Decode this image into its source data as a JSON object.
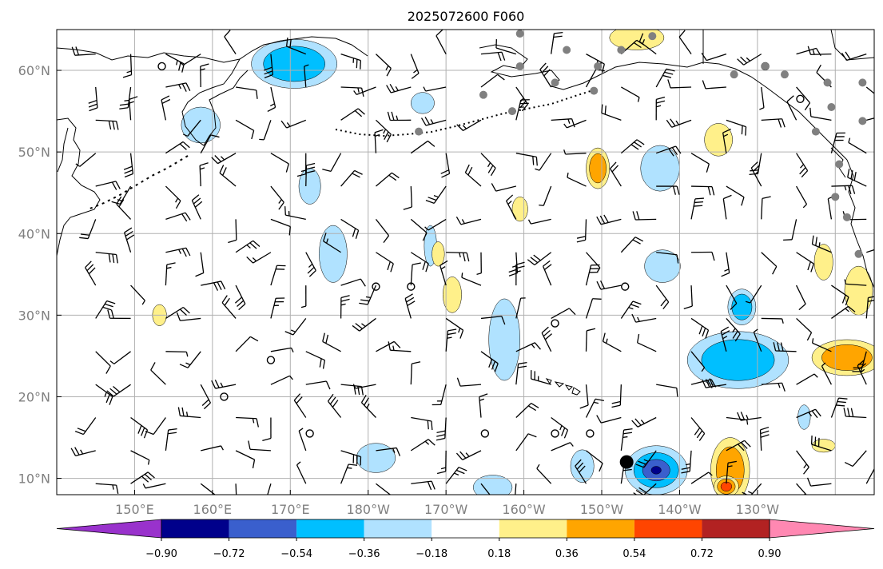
{
  "title": "2025072600 F060",
  "colors": {
    "grid": "#b0b0b0",
    "land_outline": "#000000",
    "barb": "#000000",
    "gray_marker": "#808080",
    "axis_text": "#808080"
  },
  "lat_labels": [
    "60°N",
    "50°N",
    "40°N",
    "30°N",
    "20°N",
    "10°N"
  ],
  "lon_labels": [
    "150°E",
    "160°E",
    "170°E",
    "180°W",
    "170°W",
    "160°W",
    "150°W",
    "140°W",
    "130°W"
  ],
  "colorbar": {
    "colors": [
      "#9932cc",
      "#00008b",
      "#3a5fcd",
      "#00bfff",
      "#b0e2ff",
      "#ffffff",
      "#fff08a",
      "#ffa500",
      "#ff4500",
      "#b22222",
      "#ff88b2"
    ],
    "tick_labels": [
      "−0.90",
      "−0.72",
      "−0.54",
      "−0.36",
      "−0.18",
      "0.18",
      "0.36",
      "0.54",
      "0.72",
      "0.90"
    ]
  },
  "chart_data": {
    "type": "heatmap",
    "title": "2025072600 F060",
    "projection": "Plate Carree (map)",
    "lon_range": [
      140,
      245
    ],
    "lat_range": [
      8,
      65
    ],
    "grid": true,
    "levels": [
      -0.9,
      -0.72,
      -0.54,
      -0.36,
      -0.18,
      0.18,
      0.36,
      0.54,
      0.72,
      0.9
    ],
    "colorbar_extend": "both",
    "negative_features": [
      {
        "lon": 170.5,
        "lat": 60.8,
        "rx": 5.5,
        "ry": 3.0,
        "level": -0.54
      },
      {
        "lon": 158.5,
        "lat": 53.3,
        "rx": 2.5,
        "ry": 2.2,
        "level": -0.36
      },
      {
        "lon": 172.5,
        "lat": 45.8,
        "rx": 1.4,
        "ry": 2.2,
        "level": -0.36
      },
      {
        "lon": 175.5,
        "lat": 37.5,
        "rx": 1.8,
        "ry": 3.5,
        "level": -0.36
      },
      {
        "lon": 188.0,
        "lat": 38.5,
        "rx": 0.8,
        "ry": 2.5,
        "level": -0.36
      },
      {
        "lon": 187.0,
        "lat": 56.0,
        "rx": 1.5,
        "ry": 1.3,
        "level": -0.36
      },
      {
        "lon": 197.5,
        "lat": 27.0,
        "rx": 2.0,
        "ry": 5.0,
        "level": -0.36
      },
      {
        "lon": 217.5,
        "lat": 48.0,
        "rx": 2.5,
        "ry": 2.8,
        "level": -0.36
      },
      {
        "lon": 217.8,
        "lat": 36.0,
        "rx": 2.3,
        "ry": 2.0,
        "level": -0.36
      },
      {
        "lon": 227.5,
        "lat": 24.5,
        "rx": 6.5,
        "ry": 3.5,
        "level": -0.54
      },
      {
        "lon": 228.0,
        "lat": 31.0,
        "rx": 1.8,
        "ry": 2.2,
        "level": -0.54
      },
      {
        "lon": 217.0,
        "lat": 11.0,
        "rx": 4.0,
        "ry": 3.0,
        "level": -0.9
      },
      {
        "lon": 207.5,
        "lat": 11.5,
        "rx": 1.5,
        "ry": 2.0,
        "level": -0.36
      },
      {
        "lon": 196.0,
        "lat": 8.9,
        "rx": 2.5,
        "ry": 1.5,
        "level": -0.36
      },
      {
        "lon": 181.0,
        "lat": 12.5,
        "rx": 2.5,
        "ry": 1.8,
        "level": -0.36
      },
      {
        "lon": 236.0,
        "lat": 17.5,
        "rx": 0.8,
        "ry": 1.5,
        "level": -0.36
      }
    ],
    "positive_features": [
      {
        "lon": 209.5,
        "lat": 48.0,
        "rx": 1.5,
        "ry": 2.5,
        "level": 0.54
      },
      {
        "lon": 199.5,
        "lat": 43.0,
        "rx": 1.0,
        "ry": 1.5,
        "level": 0.36
      },
      {
        "lon": 189.0,
        "lat": 37.5,
        "rx": 0.8,
        "ry": 1.5,
        "level": 0.36
      },
      {
        "lon": 190.8,
        "lat": 32.5,
        "rx": 1.2,
        "ry": 2.2,
        "level": 0.36
      },
      {
        "lon": 225.0,
        "lat": 51.5,
        "rx": 1.8,
        "ry": 2.0,
        "level": 0.36
      },
      {
        "lon": 214.5,
        "lat": 64.0,
        "rx": 3.5,
        "ry": 1.5,
        "level": 0.36
      },
      {
        "lon": 243.0,
        "lat": 33.0,
        "rx": 1.8,
        "ry": 3.0,
        "level": 0.36
      },
      {
        "lon": 238.5,
        "lat": 36.5,
        "rx": 1.2,
        "ry": 2.2,
        "level": 0.36
      },
      {
        "lon": 241.5,
        "lat": 24.8,
        "rx": 4.5,
        "ry": 2.2,
        "level": 0.54
      },
      {
        "lon": 226.5,
        "lat": 11.0,
        "rx": 2.5,
        "ry": 4.0,
        "level": 0.54
      },
      {
        "lon": 226.0,
        "lat": 9.0,
        "rx": 1.6,
        "ry": 1.3,
        "level": 0.72
      },
      {
        "lon": 153.2,
        "lat": 30.0,
        "rx": 0.9,
        "ry": 1.3,
        "level": 0.36
      },
      {
        "lon": 238.5,
        "lat": 14.0,
        "rx": 1.5,
        "ry": 0.8,
        "level": 0.36
      }
    ],
    "black_dot": {
      "lon": 213.2,
      "lat": 12.0
    },
    "open_circles": [
      {
        "lon": 153.5,
        "lat": 60.5
      },
      {
        "lon": 161.5,
        "lat": 20.0
      },
      {
        "lon": 167.5,
        "lat": 24.5
      },
      {
        "lon": 172.5,
        "lat": 15.5
      },
      {
        "lon": 181.0,
        "lat": 33.5
      },
      {
        "lon": 185.5,
        "lat": 33.5
      },
      {
        "lon": 195.0,
        "lat": 15.5
      },
      {
        "lon": 204.0,
        "lat": 29.0
      },
      {
        "lon": 204.0,
        "lat": 15.5
      },
      {
        "lon": 208.5,
        "lat": 15.5
      },
      {
        "lon": 213.0,
        "lat": 33.5
      },
      {
        "lon": 231.0,
        "lat": 60.5
      },
      {
        "lon": 235.5,
        "lat": 56.5
      }
    ],
    "gray_markers": [
      {
        "lon": 199.5,
        "lat": 64.5
      },
      {
        "lon": 205.5,
        "lat": 62.5
      },
      {
        "lon": 209.5,
        "lat": 60.5
      },
      {
        "lon": 212.5,
        "lat": 62.5
      },
      {
        "lon": 216.5,
        "lat": 64.2
      },
      {
        "lon": 204.0,
        "lat": 58.5
      },
      {
        "lon": 209.0,
        "lat": 57.5
      },
      {
        "lon": 199.5,
        "lat": 60.5
      },
      {
        "lon": 194.8,
        "lat": 57.0
      },
      {
        "lon": 198.5,
        "lat": 55.0
      },
      {
        "lon": 186.5,
        "lat": 52.5
      },
      {
        "lon": 227.0,
        "lat": 59.5
      },
      {
        "lon": 231.0,
        "lat": 60.5
      },
      {
        "lon": 233.5,
        "lat": 59.5
      },
      {
        "lon": 239.0,
        "lat": 58.5
      },
      {
        "lon": 243.5,
        "lat": 58.5
      },
      {
        "lon": 239.5,
        "lat": 55.5
      },
      {
        "lon": 243.5,
        "lat": 53.8
      },
      {
        "lon": 237.5,
        "lat": 52.5
      },
      {
        "lon": 240.5,
        "lat": 48.5
      },
      {
        "lon": 240.0,
        "lat": 44.5
      },
      {
        "lon": 241.5,
        "lat": 42.0
      },
      {
        "lon": 243.0,
        "lat": 37.5
      }
    ],
    "wind_barbs": {
      "lon_start": 145,
      "lon_step": 4.5,
      "lat_start": 62,
      "lat_step": 4.05,
      "rows": 14,
      "cols": 23
    }
  }
}
